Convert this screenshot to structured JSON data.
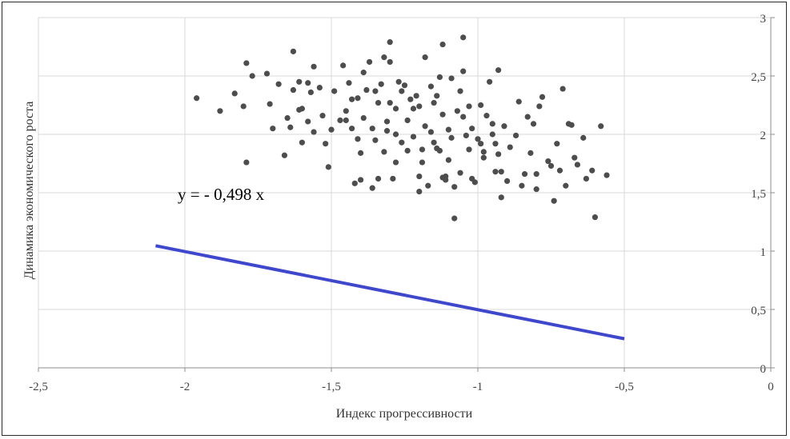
{
  "chart_data": {
    "type": "scatter",
    "xlabel": "Индекс прогрессивности",
    "ylabel": "Динамика экономического роста",
    "xlim": [
      -2.5,
      0
    ],
    "ylim": [
      0,
      3
    ],
    "x_ticks": [
      "-2,5",
      "-2",
      "-1,5",
      "-1",
      "-0,5",
      "0"
    ],
    "y_ticks": [
      "0",
      "0,5",
      "1",
      "1,5",
      "2",
      "2,5",
      "3"
    ],
    "grid": "vertical and horizontal",
    "y_axis_side": "right",
    "annotation": "y = - 0,498 x",
    "colors": {
      "points": "#4d4d4d",
      "trendline": "#3f48cc",
      "grid": "#d9d9d9"
    },
    "trendline": {
      "slope": -0.498,
      "x_start": -2.1,
      "x_end": -0.5
    },
    "series": [
      {
        "points": [
          [
            -1.96,
            2.31
          ],
          [
            -1.88,
            2.2
          ],
          [
            -1.83,
            2.35
          ],
          [
            -1.8,
            2.24
          ],
          [
            -1.79,
            2.61
          ],
          [
            -1.77,
            2.5
          ],
          [
            -1.79,
            1.76
          ],
          [
            -1.72,
            2.52
          ],
          [
            -1.71,
            2.26
          ],
          [
            -1.7,
            2.05
          ],
          [
            -1.68,
            2.43
          ],
          [
            -1.66,
            1.82
          ],
          [
            -1.65,
            2.14
          ],
          [
            -1.64,
            2.06
          ],
          [
            -1.63,
            2.38
          ],
          [
            -1.63,
            2.71
          ],
          [
            -1.61,
            2.21
          ],
          [
            -1.61,
            2.45
          ],
          [
            -1.6,
            1.93
          ],
          [
            -1.6,
            2.22
          ],
          [
            -1.58,
            2.44
          ],
          [
            -1.58,
            2.11
          ],
          [
            -1.57,
            2.36
          ],
          [
            -1.56,
            2.58
          ],
          [
            -1.56,
            2.02
          ],
          [
            -1.54,
            2.4
          ],
          [
            -1.53,
            2.16
          ],
          [
            -1.52,
            1.92
          ],
          [
            -1.51,
            1.72
          ],
          [
            -1.49,
            2.37
          ],
          [
            -1.47,
            2.12
          ],
          [
            -1.46,
            2.59
          ],
          [
            -1.45,
            2.2
          ],
          [
            -1.44,
            2.44
          ],
          [
            -1.43,
            2.3
          ],
          [
            -1.43,
            2.05
          ],
          [
            -1.42,
            1.58
          ],
          [
            -1.41,
            1.96
          ],
          [
            -1.41,
            2.31
          ],
          [
            -1.4,
            1.84
          ],
          [
            -1.39,
            2.53
          ],
          [
            -1.39,
            2.14
          ],
          [
            -1.38,
            2.38
          ],
          [
            -1.37,
            2.62
          ],
          [
            -1.36,
            2.05
          ],
          [
            -1.35,
            1.95
          ],
          [
            -1.35,
            2.37
          ],
          [
            -1.34,
            2.27
          ],
          [
            -1.33,
            2.43
          ],
          [
            -1.32,
            1.85
          ],
          [
            -1.32,
            2.66
          ],
          [
            -1.31,
            2.03
          ],
          [
            -1.31,
            2.11
          ],
          [
            -1.3,
            2.79
          ],
          [
            -1.3,
            2.62
          ],
          [
            -1.3,
            2.27
          ],
          [
            -1.29,
            1.62
          ],
          [
            -1.28,
            1.76
          ],
          [
            -1.28,
            2.0
          ],
          [
            -1.27,
            2.45
          ],
          [
            -1.26,
            1.93
          ],
          [
            -1.26,
            2.37
          ],
          [
            -1.25,
            2.42
          ],
          [
            -1.24,
            2.12
          ],
          [
            -1.24,
            1.86
          ],
          [
            -1.23,
            2.3
          ],
          [
            -1.22,
            2.22
          ],
          [
            -1.22,
            1.98
          ],
          [
            -1.21,
            2.33
          ],
          [
            -1.2,
            2.24
          ],
          [
            -1.2,
            1.51
          ],
          [
            -1.19,
            1.87
          ],
          [
            -1.19,
            1.76
          ],
          [
            -1.18,
            2.07
          ],
          [
            -1.18,
            2.66
          ],
          [
            -1.16,
            2.41
          ],
          [
            -1.16,
            2.02
          ],
          [
            -1.15,
            2.27
          ],
          [
            -1.14,
            2.33
          ],
          [
            -1.14,
            1.88
          ],
          [
            -1.13,
            1.86
          ],
          [
            -1.13,
            2.49
          ],
          [
            -1.12,
            1.63
          ],
          [
            -1.12,
            2.17
          ],
          [
            -1.12,
            2.77
          ],
          [
            -1.11,
            1.61
          ],
          [
            -1.11,
            1.64
          ],
          [
            -1.1,
            1.78
          ],
          [
            -1.1,
            2.04
          ],
          [
            -1.09,
            1.97
          ],
          [
            -1.09,
            2.48
          ],
          [
            -1.08,
            1.55
          ],
          [
            -1.08,
            1.28
          ],
          [
            -1.07,
            2.2
          ],
          [
            -1.06,
            2.37
          ],
          [
            -1.06,
            1.67
          ],
          [
            -1.05,
            2.15
          ],
          [
            -1.05,
            2.83
          ],
          [
            -1.05,
            2.54
          ],
          [
            -1.04,
            1.99
          ],
          [
            -1.03,
            1.87
          ],
          [
            -1.03,
            2.24
          ],
          [
            -1.02,
            1.62
          ],
          [
            -1.02,
            2.05
          ],
          [
            -1.01,
            1.59
          ],
          [
            -1.0,
            1.96
          ],
          [
            -0.99,
            1.92
          ],
          [
            -0.99,
            2.25
          ],
          [
            -0.98,
            1.85
          ],
          [
            -0.98,
            1.8
          ],
          [
            -0.97,
            2.16
          ],
          [
            -0.96,
            2.45
          ],
          [
            -0.95,
            2.0
          ],
          [
            -0.94,
            1.68
          ],
          [
            -0.93,
            1.83
          ],
          [
            -0.92,
            1.46
          ],
          [
            -0.92,
            1.68
          ],
          [
            -0.91,
            2.07
          ],
          [
            -0.9,
            1.6
          ],
          [
            -0.89,
            1.89
          ],
          [
            -0.87,
            1.99
          ],
          [
            -0.86,
            2.28
          ],
          [
            -0.85,
            1.56
          ],
          [
            -0.84,
            1.66
          ],
          [
            -0.83,
            2.15
          ],
          [
            -0.82,
            1.84
          ],
          [
            -0.81,
            2.09
          ],
          [
            -0.8,
            1.53
          ],
          [
            -0.8,
            1.66
          ],
          [
            -0.79,
            2.24
          ],
          [
            -0.78,
            2.32
          ],
          [
            -0.76,
            1.77
          ],
          [
            -0.75,
            1.73
          ],
          [
            -0.74,
            1.43
          ],
          [
            -0.73,
            1.92
          ],
          [
            -0.72,
            1.69
          ],
          [
            -0.71,
            2.39
          ],
          [
            -0.7,
            1.56
          ],
          [
            -0.69,
            2.09
          ],
          [
            -0.68,
            2.08
          ],
          [
            -0.67,
            1.8
          ],
          [
            -0.66,
            1.74
          ],
          [
            -0.64,
            1.97
          ],
          [
            -0.63,
            1.62
          ],
          [
            -0.61,
            1.69
          ],
          [
            -0.6,
            1.29
          ],
          [
            -0.58,
            2.07
          ],
          [
            -0.56,
            1.65
          ],
          [
            -0.95,
            2.09
          ],
          [
            -0.94,
            1.92
          ],
          [
            -0.93,
            2.55
          ],
          [
            -1.15,
            1.93
          ],
          [
            -1.17,
            1.56
          ],
          [
            -1.2,
            1.64
          ],
          [
            -1.5,
            2.04
          ],
          [
            -1.45,
            2.12
          ],
          [
            -1.4,
            1.61
          ],
          [
            -1.36,
            1.54
          ],
          [
            -1.34,
            1.62
          ],
          [
            -1.28,
            2.22
          ]
        ]
      }
    ]
  }
}
